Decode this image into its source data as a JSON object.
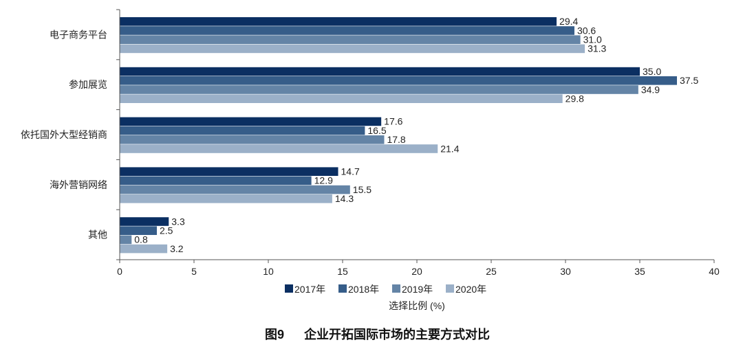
{
  "chart_data": {
    "type": "bar",
    "orientation": "horizontal",
    "title": "图9　企业开拓国际市场的主要方式对比",
    "figure_label": "图9",
    "figure_title": "企业开拓国际市场的主要方式对比",
    "xlabel": "选择比例 (%)",
    "ylabel": "",
    "xlim": [
      0,
      40
    ],
    "xticks": [
      0,
      5,
      10,
      15,
      20,
      25,
      30,
      35,
      40
    ],
    "grid": false,
    "legend_position": "bottom",
    "categories": [
      "电子商务平台",
      "参加展览",
      "依托国外大型经销商",
      "海外营销网络",
      "其他"
    ],
    "series": [
      {
        "name": "2017年",
        "color": "#0b2f62",
        "values": [
          29.4,
          35.0,
          17.6,
          14.7,
          3.3
        ]
      },
      {
        "name": "2018年",
        "color": "#365d89",
        "values": [
          30.6,
          37.5,
          16.5,
          12.9,
          2.5
        ]
      },
      {
        "name": "2019年",
        "color": "#6484a6",
        "values": [
          31.0,
          34.9,
          17.8,
          15.5,
          0.8
        ]
      },
      {
        "name": "2020年",
        "color": "#9bb0c8",
        "values": [
          31.3,
          29.8,
          21.4,
          14.3,
          3.2
        ]
      }
    ]
  }
}
